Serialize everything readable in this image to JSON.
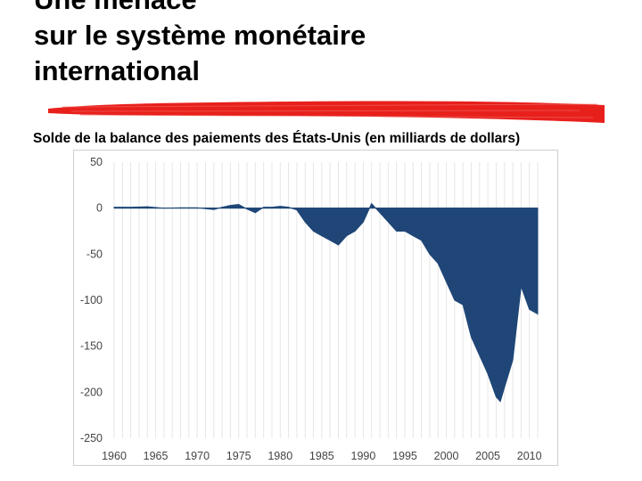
{
  "slide": {
    "title_lines": [
      "Une menace",
      "sur le système monétaire",
      "international"
    ],
    "caption": "Solde de la balance des paiements des États-Unis (en milliards de dollars)",
    "accent_color": "#e8201c",
    "chart_color": "#1f4677"
  },
  "chart_data": {
    "type": "area",
    "title": "Solde de la balance des paiements des États-Unis (en milliards de dollars)",
    "xlabel": "",
    "ylabel": "",
    "xlim": [
      1960,
      2011
    ],
    "ylim": [
      -250,
      50
    ],
    "x_ticks": [
      1960,
      1965,
      1970,
      1975,
      1980,
      1985,
      1990,
      1995,
      2000,
      2005,
      2010
    ],
    "y_ticks": [
      50,
      0,
      -50,
      -100,
      -150,
      -200,
      -250
    ],
    "grid": "vertical",
    "legend": "none",
    "series": [
      {
        "x": [
          1960,
          1962,
          1964,
          1966,
          1968,
          1970,
          1972,
          1973,
          1974,
          1975,
          1976,
          1977,
          1978,
          1979,
          1980,
          1981,
          1982,
          1983,
          1984,
          1985,
          1986,
          1987,
          1988,
          1989,
          1990,
          1991,
          1992,
          1993,
          1994,
          1995,
          1996,
          1997,
          1998,
          1999,
          2000,
          2001,
          2002,
          2003,
          2004,
          2005,
          2006,
          2006.5,
          2007,
          2008,
          2009,
          2010,
          2011
        ],
        "values": [
          1,
          1,
          1.5,
          0,
          0.5,
          0.5,
          -1.5,
          1,
          3,
          4,
          -1,
          -5,
          1,
          1,
          2,
          1,
          -2,
          -15,
          -25,
          -30,
          -35,
          -40,
          -30,
          -25,
          -15,
          5,
          -5,
          -15,
          -25,
          -25,
          -30,
          -35,
          -50,
          -60,
          -80,
          -100,
          -105,
          -140,
          -160,
          -180,
          -205,
          -210,
          -195,
          -165,
          -85,
          -110,
          -115
        ]
      }
    ]
  }
}
